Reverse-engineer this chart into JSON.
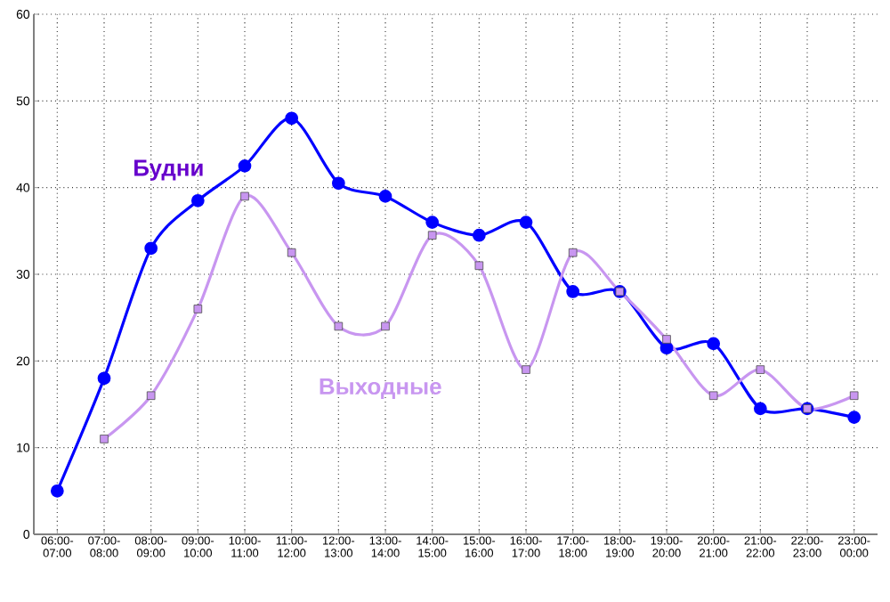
{
  "chart_data": {
    "type": "line",
    "categories": [
      "06:00-07:00",
      "07:00-08:00",
      "08:00-09:00",
      "09:00-10:00",
      "10:00-11:00",
      "11:00-12:00",
      "12:00-13:00",
      "13:00-14:00",
      "14:00-15:00",
      "15:00-16:00",
      "16:00-17:00",
      "17:00-18:00",
      "18:00-19:00",
      "19:00-20:00",
      "20:00-21:00",
      "21:00-22:00",
      "22:00-23:00",
      "23:00-00:00"
    ],
    "series": [
      {
        "name": "Будни",
        "color": "#0000ff",
        "marker": "circle",
        "values": [
          5,
          18,
          33,
          38.5,
          42.5,
          48,
          40.5,
          39,
          36,
          34.5,
          36,
          28,
          28,
          21.5,
          22,
          14.5,
          14.5,
          13.5
        ]
      },
      {
        "name": "Выходные",
        "color": "#c896f0",
        "marker": "square",
        "values": [
          null,
          11,
          16,
          26,
          39,
          32.5,
          24,
          24,
          34.5,
          31,
          19,
          32.5,
          28,
          22.5,
          16,
          19,
          14.5,
          16
        ]
      }
    ],
    "ylim": [
      0,
      60
    ],
    "yticks": [
      0,
      10,
      20,
      30,
      40,
      50,
      60
    ],
    "grid": true,
    "legend": false,
    "line_style": "solid"
  }
}
